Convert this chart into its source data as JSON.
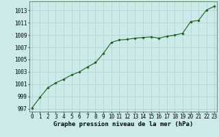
{
  "x": [
    0,
    1,
    2,
    3,
    4,
    5,
    6,
    7,
    8,
    9,
    10,
    11,
    12,
    13,
    14,
    15,
    16,
    17,
    18,
    19,
    20,
    21,
    22,
    23
  ],
  "y": [
    997.1,
    998.8,
    1000.4,
    1001.2,
    1001.8,
    1002.5,
    1003.0,
    1003.8,
    1004.5,
    1006.0,
    1007.8,
    1008.2,
    1008.3,
    1008.5,
    1008.6,
    1008.7,
    1008.5,
    1008.8,
    1009.0,
    1009.3,
    1011.2,
    1011.4,
    1013.1,
    1013.7
  ],
  "ylim": [
    996.5,
    1014.5
  ],
  "yticks": [
    997,
    999,
    1001,
    1003,
    1005,
    1007,
    1009,
    1011,
    1013
  ],
  "xlim": [
    -0.3,
    23.3
  ],
  "xticks": [
    0,
    1,
    2,
    3,
    4,
    5,
    6,
    7,
    8,
    9,
    10,
    11,
    12,
    13,
    14,
    15,
    16,
    17,
    18,
    19,
    20,
    21,
    22,
    23
  ],
  "xlabel": "Graphe pression niveau de la mer (hPa)",
  "line_color": "#1a5c1a",
  "marker": "D",
  "marker_size": 1.8,
  "bg_color": "#cceaea",
  "grid_color": "#aacfcf",
  "tick_label_fontsize": 5.5,
  "xlabel_fontsize": 6.5,
  "line_width": 0.8
}
